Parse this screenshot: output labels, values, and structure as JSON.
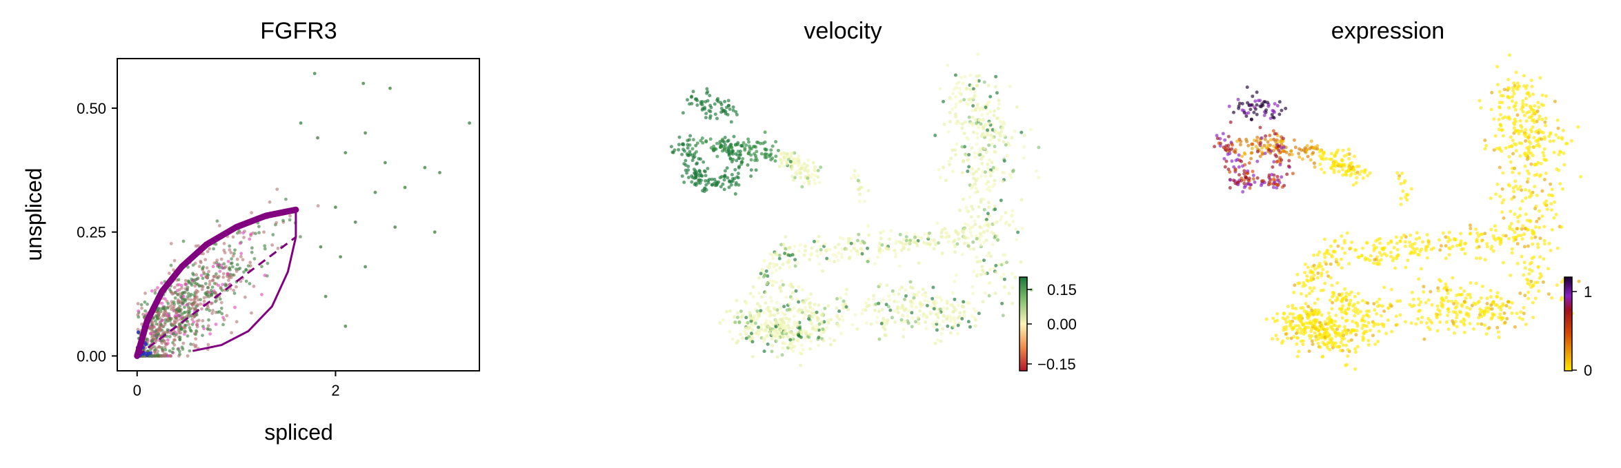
{
  "chart_data": [
    {
      "type": "scatter",
      "title": "FGFR3",
      "xlabel": "spliced",
      "ylabel": "unspliced",
      "xlim": [
        -0.2,
        3.45
      ],
      "ylim": [
        -0.03,
        0.6
      ],
      "xticks": [
        "0",
        "2"
      ],
      "yticks": [
        "0.00",
        "0.25",
        "0.50"
      ],
      "grid": false,
      "legend": "none",
      "colors": {
        "points_a": "#3a7d3a",
        "points_b": "#b07070",
        "points_c": "#e040c0",
        "points_d": "#2030c0",
        "fit_curve": "#800080"
      },
      "fit": {
        "upper_curve": [
          [
            0,
            0
          ],
          [
            0.1,
            0.07
          ],
          [
            0.25,
            0.13
          ],
          [
            0.45,
            0.18
          ],
          [
            0.7,
            0.225
          ],
          [
            1.0,
            0.26
          ],
          [
            1.3,
            0.283
          ],
          [
            1.6,
            0.295
          ]
        ],
        "lower_curve": [
          [
            1.6,
            0.295
          ],
          [
            1.6,
            0.24
          ],
          [
            1.52,
            0.17
          ],
          [
            1.36,
            0.1
          ],
          [
            1.12,
            0.05
          ],
          [
            0.85,
            0.022
          ],
          [
            0.56,
            0.01
          ]
        ],
        "steady_state_line": [
          [
            0,
            0
          ],
          [
            1.6,
            0.24
          ]
        ]
      },
      "outlier_points": [
        [
          1.79,
          0.57
        ],
        [
          2.28,
          0.55
        ],
        [
          2.55,
          0.54
        ],
        [
          3.35,
          0.47
        ],
        [
          1.65,
          0.47
        ],
        [
          1.82,
          0.44
        ],
        [
          2.3,
          0.45
        ],
        [
          2.1,
          0.41
        ],
        [
          2.5,
          0.39
        ],
        [
          2.9,
          0.38
        ],
        [
          3.05,
          0.37
        ],
        [
          2.7,
          0.34
        ],
        [
          2.4,
          0.33
        ],
        [
          2.0,
          0.3
        ],
        [
          2.2,
          0.27
        ],
        [
          2.6,
          0.26
        ],
        [
          3.0,
          0.25
        ],
        [
          1.85,
          0.22
        ],
        [
          2.05,
          0.2
        ],
        [
          2.3,
          0.18
        ],
        [
          1.9,
          0.12
        ],
        [
          2.1,
          0.06
        ]
      ]
    },
    {
      "type": "scatter",
      "title": "velocity",
      "colorbar": {
        "ticks": [
          "0.15",
          "0.00",
          "−0.15"
        ],
        "range": [
          -0.19,
          0.19
        ],
        "colors": [
          "#b2182b",
          "#fdf4b8",
          "#1a7837"
        ]
      }
    },
    {
      "type": "scatter",
      "title": "expression",
      "colorbar": {
        "ticks": [
          "1",
          "0"
        ],
        "range": [
          0,
          1.2
        ],
        "colors": [
          "#ffe800",
          "#c02000",
          "#8a20c0",
          "#1a0030"
        ]
      }
    }
  ]
}
